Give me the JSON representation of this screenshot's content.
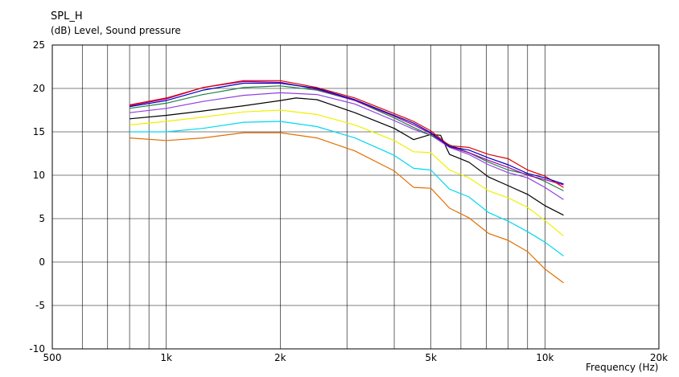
{
  "chart_data": {
    "type": "line",
    "title": "SPL_H",
    "ylabel": "(dB)  Level, Sound pressure",
    "xlabel": "Frequency  (Hz)",
    "x_scale": "log",
    "xlim": [
      500,
      20000
    ],
    "ylim": [
      -10,
      25
    ],
    "grid": true,
    "x_ticks": [
      500,
      1000,
      2000,
      5000,
      10000,
      20000
    ],
    "x_tick_labels": [
      "500",
      "1k",
      "2k",
      "5k",
      "10k",
      "20k"
    ],
    "y_ticks": [
      25,
      20,
      15,
      10,
      5,
      0,
      -5,
      -10
    ],
    "y_tick_labels": [
      "25",
      "20",
      "15",
      "10",
      "5",
      "0",
      "-5",
      "-10"
    ],
    "series": [
      {
        "color": "#e07000",
        "x": [
          800,
          1000,
          1250,
          1600,
          2000,
          2500,
          3150,
          4000,
          4500,
          5000,
          5600,
          6300,
          7100,
          8000,
          9000,
          10000,
          11200
        ],
        "values": [
          14.3,
          14.0,
          14.3,
          14.9,
          14.9,
          14.3,
          12.8,
          10.5,
          8.6,
          8.5,
          6.2,
          5.1,
          3.3,
          2.5,
          1.2,
          -0.8,
          -2.4
        ]
      },
      {
        "color": "#00d8f0",
        "x": [
          800,
          1000,
          1250,
          1600,
          2000,
          2500,
          3150,
          4000,
          4500,
          5000,
          5600,
          6300,
          7100,
          8000,
          9000,
          10000,
          11200
        ],
        "values": [
          15.0,
          15.0,
          15.4,
          16.1,
          16.2,
          15.6,
          14.3,
          12.3,
          10.8,
          10.6,
          8.4,
          7.5,
          5.7,
          4.7,
          3.5,
          2.3,
          0.7
        ]
      },
      {
        "color": "#f0f000",
        "x": [
          800,
          1000,
          1250,
          1600,
          2000,
          2500,
          3150,
          4000,
          4500,
          5000,
          5600,
          6300,
          7100,
          8000,
          9000,
          10000,
          11200
        ],
        "values": [
          15.8,
          16.2,
          16.7,
          17.3,
          17.5,
          17.0,
          15.8,
          14.0,
          12.7,
          12.6,
          10.6,
          9.7,
          8.2,
          7.4,
          6.3,
          4.8,
          3.0
        ]
      },
      {
        "color": "#000000",
        "x": [
          800,
          1000,
          1250,
          1600,
          2000,
          2200,
          2500,
          3150,
          4000,
          4500,
          5000,
          5300,
          5600,
          6300,
          7100,
          8000,
          9000,
          10000,
          11200
        ],
        "values": [
          16.5,
          16.9,
          17.4,
          18.0,
          18.6,
          18.9,
          18.7,
          17.2,
          15.4,
          14.1,
          14.7,
          14.6,
          12.4,
          11.5,
          9.8,
          8.8,
          7.8,
          6.5,
          5.4
        ]
      },
      {
        "color": "#9040e0",
        "x": [
          800,
          1000,
          1250,
          1600,
          2000,
          2500,
          3150,
          4000,
          4500,
          5000,
          5600,
          6300,
          7100,
          8000,
          9000,
          10000,
          11200
        ],
        "values": [
          17.2,
          17.7,
          18.5,
          19.2,
          19.5,
          19.3,
          18.2,
          16.3,
          15.3,
          14.6,
          13.2,
          12.4,
          11.2,
          10.3,
          9.7,
          8.6,
          7.2
        ]
      },
      {
        "color": "#208040",
        "x": [
          800,
          1000,
          1250,
          1600,
          2000,
          2500,
          3150,
          4000,
          4500,
          5000,
          5600,
          6300,
          7100,
          8000,
          9000,
          10000,
          11200
        ],
        "values": [
          17.7,
          18.3,
          19.3,
          20.1,
          20.3,
          19.8,
          18.6,
          16.6,
          15.5,
          14.6,
          13.5,
          12.6,
          11.5,
          10.6,
          10.1,
          9.3,
          8.2
        ]
      },
      {
        "color": "#a000a0",
        "x": [
          800,
          1000,
          1250,
          1600,
          2000,
          2500,
          3150,
          4000,
          4500,
          5000,
          5600,
          6300,
          7100,
          8000,
          9000,
          10000,
          11200
        ],
        "values": [
          18.0,
          18.8,
          20.1,
          20.8,
          20.7,
          19.9,
          18.6,
          16.8,
          15.8,
          14.8,
          13.3,
          12.6,
          11.7,
          10.9,
          10.0,
          9.5,
          8.9
        ]
      },
      {
        "color": "#e00000",
        "x": [
          800,
          1000,
          1250,
          1600,
          2000,
          2500,
          3150,
          4000,
          4500,
          5000,
          5600,
          6300,
          7100,
          8000,
          9000,
          10000,
          11200
        ],
        "values": [
          18.1,
          18.9,
          20.1,
          20.9,
          20.9,
          20.1,
          18.9,
          17.1,
          16.2,
          15.1,
          13.4,
          13.2,
          12.4,
          11.9,
          10.6,
          9.9,
          8.6
        ]
      },
      {
        "color": "#0000c0",
        "x": [
          800,
          1000,
          1250,
          1600,
          2000,
          2500,
          3150,
          4000,
          4500,
          5000,
          5600,
          6300,
          7100,
          8000,
          9000,
          10000,
          11200
        ],
        "values": [
          17.9,
          18.6,
          19.8,
          20.6,
          20.6,
          20.0,
          18.7,
          16.9,
          16.0,
          14.9,
          13.3,
          12.9,
          12.0,
          11.2,
          10.2,
          9.7,
          9.0
        ]
      }
    ]
  }
}
